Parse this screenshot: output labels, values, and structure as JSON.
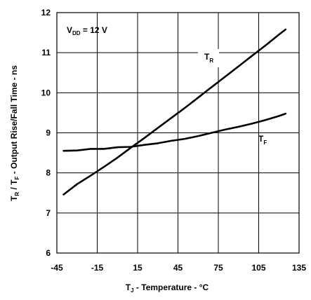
{
  "chart_data": {
    "type": "line",
    "xlabel": {
      "main": "T",
      "sub": "J",
      "rest": " - Temperature - °C"
    },
    "ylabel": {
      "p1": "T",
      "s1": "R",
      "p2": " / T",
      "s2": "F",
      "rest": " - Output Rise/Fall Time - ns"
    },
    "xlim": [
      -45,
      135
    ],
    "ylim": [
      6,
      12
    ],
    "xticks": [
      "-45",
      "-15",
      "15",
      "45",
      "75",
      "105",
      "135"
    ],
    "yticks": [
      "6",
      "7",
      "8",
      "9",
      "10",
      "11",
      "12"
    ],
    "grid": true,
    "annotation": {
      "main": "V",
      "sub": "DD",
      "rest": " = 12 V"
    },
    "series": [
      {
        "name": "TR",
        "name_main": "T",
        "name_sub": "R",
        "x": [
          -40,
          -30,
          -20,
          -10,
          0,
          10,
          20,
          30,
          40,
          50,
          60,
          70,
          80,
          90,
          100,
          110,
          120,
          125
        ],
        "y": [
          7.46,
          7.72,
          7.93,
          8.15,
          8.38,
          8.63,
          8.87,
          9.12,
          9.37,
          9.62,
          9.88,
          10.14,
          10.4,
          10.66,
          10.92,
          11.18,
          11.45,
          11.58
        ]
      },
      {
        "name": "TF",
        "name_main": "T",
        "name_sub": "F",
        "x": [
          -40,
          -30,
          -20,
          -10,
          0,
          10,
          20,
          30,
          40,
          50,
          60,
          70,
          80,
          90,
          100,
          110,
          120,
          125
        ],
        "y": [
          8.55,
          8.56,
          8.6,
          8.6,
          8.64,
          8.65,
          8.7,
          8.74,
          8.8,
          8.85,
          8.92,
          9.0,
          9.08,
          9.15,
          9.23,
          9.32,
          9.42,
          9.48
        ]
      }
    ]
  }
}
